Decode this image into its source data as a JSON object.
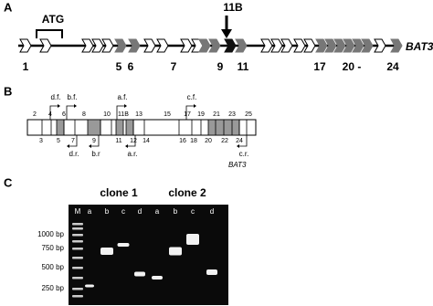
{
  "panel_a": {
    "label": "A",
    "start_codon": "ATG",
    "marker": "11B",
    "exon_labels": [
      "1",
      "5",
      "6",
      "7",
      "9",
      "11",
      "17",
      "20 -",
      "24"
    ],
    "gene": "BAT3"
  },
  "panel_b": {
    "label": "B",
    "forward_primers": [
      "d.f.",
      "b.f.",
      "a.f.",
      "c.f."
    ],
    "top_exons": [
      "2",
      "4",
      "6",
      "8",
      "10",
      "11B",
      "13",
      "15",
      "17",
      "19",
      "21",
      "23",
      "25"
    ],
    "bottom_exons": [
      "3",
      "5",
      "7",
      "9",
      "11",
      "12",
      "14",
      "16",
      "18",
      "20",
      "22",
      "24"
    ],
    "reverse_primers": [
      "d.r.",
      "b.r",
      "a.r.",
      "c.r."
    ],
    "gene": "BAT3"
  },
  "panel_c": {
    "label": "C",
    "groups": [
      "clone 1",
      "clone 2"
    ],
    "lanes": [
      "M",
      "a",
      "b",
      "c",
      "d",
      "a",
      "b",
      "c",
      "d"
    ],
    "size_markers": [
      "1000 bp",
      "750 bp",
      "500 bp",
      "250 bp"
    ]
  }
}
